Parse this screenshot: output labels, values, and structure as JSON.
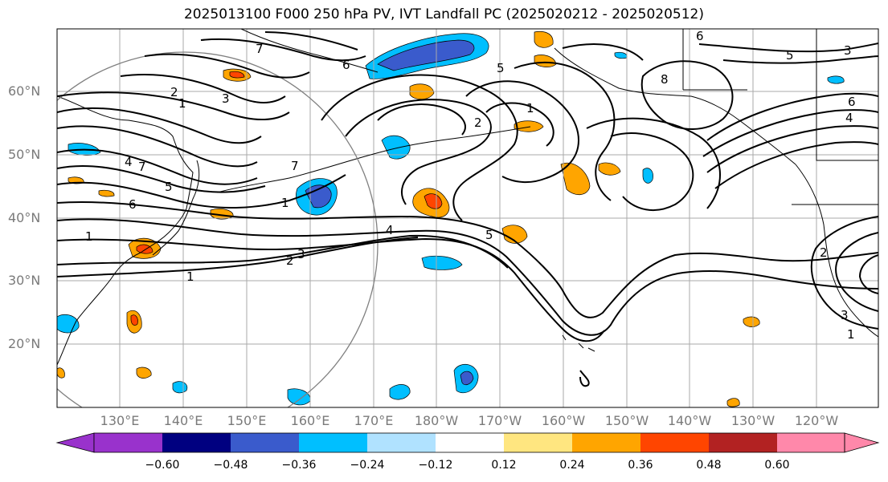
{
  "title": "2025013100 F000 250 hPa PV, IVT Landfall PC (2025020212 - 2025020512)",
  "map": {
    "lat_labels": [
      "60°N",
      "50°N",
      "40°N",
      "30°N",
      "20°N"
    ],
    "lon_labels": [
      "130°E",
      "140°E",
      "150°E",
      "160°E",
      "170°E",
      "180°W",
      "170°W",
      "160°W",
      "150°W",
      "140°W",
      "130°W",
      "120°W"
    ],
    "contour_labels": [
      "7",
      "6",
      "3",
      "2",
      "1",
      "8",
      "6",
      "4",
      "5",
      "7",
      "6",
      "4",
      "1",
      "3",
      "5",
      "7",
      "4",
      "3",
      "2",
      "1",
      "5",
      "6",
      "1",
      "2",
      "3",
      "2",
      "1",
      "5",
      "1"
    ],
    "grid_color": "#aaaaaa",
    "circle_color": "#808080"
  },
  "colorbar": {
    "tick_labels": [
      "−0.60",
      "−0.48",
      "−0.36",
      "−0.24",
      "−0.12",
      "0.12",
      "0.24",
      "0.36",
      "0.48",
      "0.60"
    ],
    "colors": [
      "#9932cc",
      "#000080",
      "#3a5bcc",
      "#00bfff",
      "#b0e2ff",
      "#ffffff",
      "#ffe680",
      "#ffa500",
      "#ff4500",
      "#b22222",
      "#ff88aa"
    ]
  }
}
